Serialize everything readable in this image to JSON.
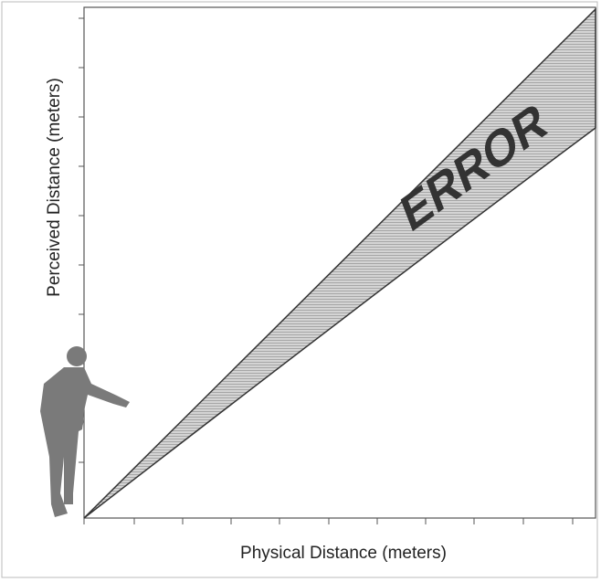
{
  "y_axis_label": "Perceived Distance (meters)",
  "x_axis_label": "Physical Distance (meters)",
  "annotation": "ERROR"
}
